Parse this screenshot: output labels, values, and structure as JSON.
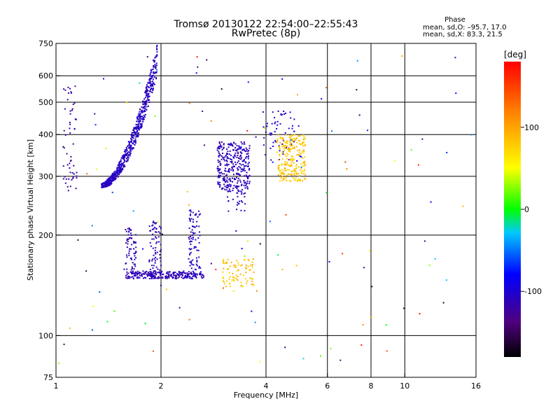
{
  "header": {
    "title_line1": "Tromsø 20130122 22:54:00–22:55:43",
    "title_line2": "RwPretec (8p)",
    "phase_heading": "Phase",
    "phase_stats_o": "mean, sd,O: –95.7, 17.0",
    "phase_stats_x": "mean, sd,X:  83.3, 21.5"
  },
  "chart_data": {
    "type": "scatter",
    "xlabel": "Frequency [MHz]",
    "ylabel": "Stationary phase Virtual Height [km]",
    "xscale": "log",
    "yscale": "log",
    "xlim": [
      1,
      16
    ],
    "ylim": [
      75,
      750
    ],
    "xticks": [
      1,
      2,
      4,
      6,
      8,
      10,
      16
    ],
    "yticks": [
      75,
      100,
      200,
      300,
      400,
      500,
      600,
      750
    ],
    "grid_x": [
      2,
      4,
      6,
      8,
      10
    ],
    "grid_y": [
      100,
      200,
      300,
      400,
      500,
      600
    ],
    "colorbar": {
      "label": "[deg]",
      "range": [
        -180,
        180
      ],
      "ticks": [
        100,
        0,
        -100
      ]
    },
    "point_groups": [
      {
        "trace": "curve",
        "f0": 1.35,
        "f1": 1.95,
        "h0": 280,
        "h1": 650,
        "spread": 0.09,
        "phase": [
          -118,
          -96
        ],
        "n": 620
      },
      {
        "trace": "box",
        "x": [
          1.58,
          2.65
        ],
        "y": [
          148,
          156
        ],
        "phase": [
          -125,
          -100
        ],
        "n": 240
      },
      {
        "trace": "box",
        "x": [
          1.58,
          1.7
        ],
        "y": [
          150,
          210
        ],
        "phase": [
          -125,
          -100
        ],
        "n": 70
      },
      {
        "trace": "box",
        "x": [
          1.85,
          2.0
        ],
        "y": [
          150,
          220
        ],
        "phase": [
          -125,
          -100
        ],
        "n": 80
      },
      {
        "trace": "box",
        "x": [
          2.4,
          2.6
        ],
        "y": [
          150,
          240
        ],
        "phase": [
          -120,
          -95
        ],
        "n": 90
      },
      {
        "trace": "box",
        "x": [
          2.9,
          3.6
        ],
        "y": [
          270,
          380
        ],
        "phase": [
          -125,
          -95
        ],
        "n": 320
      },
      {
        "trace": "box",
        "x": [
          3.1,
          3.5
        ],
        "y": [
          235,
          270
        ],
        "phase": [
          -125,
          -100
        ],
        "n": 25
      },
      {
        "trace": "box",
        "x": [
          3.9,
          5.1
        ],
        "y": [
          330,
          470
        ],
        "phase": [
          -110,
          -90
        ],
        "n": 60
      },
      {
        "trace": "box",
        "x": [
          4.3,
          5.2
        ],
        "y": [
          290,
          400
        ],
        "phase": [
          70,
          95
        ],
        "n": 240
      },
      {
        "trace": "box",
        "x": [
          3.0,
          3.7
        ],
        "y": [
          140,
          170
        ],
        "phase": [
          70,
          100
        ],
        "n": 85
      },
      {
        "trace": "box",
        "x": [
          1.05,
          1.15
        ],
        "y": [
          270,
          560
        ],
        "phase": [
          -135,
          -110
        ],
        "n": 55
      },
      {
        "trace": "box",
        "x": [
          1.0,
          16.0
        ],
        "y": [
          80,
          700
        ],
        "phase": [
          -180,
          180
        ],
        "n": 120
      }
    ]
  }
}
